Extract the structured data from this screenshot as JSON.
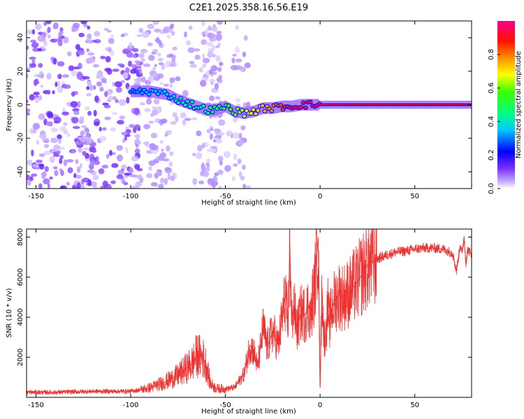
{
  "figure_title": "C2E1.2025.358.16.56.E19",
  "chart_data": [
    {
      "type": "heatmap",
      "xlabel": "Height of straight line (km)",
      "ylabel": "Frequency (Hz)",
      "xlim": [
        -155,
        80
      ],
      "ylim": [
        -50,
        50
      ],
      "xticks": [
        -150,
        -100,
        -50,
        0,
        50
      ],
      "yticks": [
        -40,
        -20,
        0,
        20,
        40
      ],
      "xtick_labels": [
        "-150",
        "-100",
        "-50",
        "0",
        "50"
      ],
      "ytick_labels": [
        "-40",
        "-20",
        "0",
        "20",
        "40"
      ],
      "grid": false,
      "colorbar": {
        "label": "Normalized spectral amplitude",
        "range": [
          0,
          1
        ],
        "ticks": [
          0.0,
          0.2,
          0.4,
          0.6,
          0.8
        ],
        "tick_labels": [
          "0.0",
          "0.2",
          "0.4",
          "0.6",
          "0.8"
        ],
        "colormap": [
          "#ffffff",
          "#a0a0ff",
          "#6000ff",
          "#0000ff",
          "#00ffff",
          "#00ff00",
          "#ffff00",
          "#ff8000",
          "#ff0000",
          "#ff0080"
        ]
      },
      "ridge": {
        "x": [
          -100,
          -90,
          -80,
          -75,
          -70,
          -65,
          -60,
          -55,
          -50,
          -45,
          -40,
          -35,
          -30,
          -25,
          -20,
          -15,
          -10,
          -5,
          0,
          5,
          10,
          20,
          40,
          60,
          80
        ],
        "freq": [
          8,
          8,
          6,
          3,
          1,
          -1,
          -3,
          -3,
          -1,
          -4,
          -5,
          -4,
          -2,
          -2,
          -1,
          -1,
          0,
          0,
          0,
          0,
          0,
          0,
          0,
          0,
          0
        ],
        "amplitude": [
          0.3,
          0.35,
          0.35,
          0.4,
          0.45,
          0.45,
          0.45,
          0.5,
          0.55,
          0.6,
          0.65,
          0.7,
          0.75,
          0.8,
          0.85,
          0.9,
          0.9,
          0.95,
          0.95,
          0.95,
          0.95,
          0.9,
          0.9,
          0.9,
          0.9
        ]
      }
    },
    {
      "type": "line",
      "xlabel": "Height of straight line (km)",
      "ylabel": "SNR (10 * v/v)",
      "xlim": [
        -155,
        80
      ],
      "ylim": [
        0,
        8400
      ],
      "xticks": [
        -150,
        -100,
        -50,
        0,
        50
      ],
      "yticks": [
        2000,
        4000,
        6000,
        8000
      ],
      "xtick_labels": [
        "-150",
        "-100",
        "-50",
        "0",
        "50"
      ],
      "ytick_labels": [
        "2000",
        "4000",
        "6000",
        "8000"
      ],
      "grid": false,
      "series": [
        {
          "name": "SNR",
          "color": "#ee3333",
          "x": [
            -155,
            -140,
            -120,
            -100,
            -95,
            -90,
            -85,
            -80,
            -75,
            -72,
            -68,
            -65,
            -62,
            -60,
            -58,
            -55,
            -50,
            -45,
            -40,
            -37,
            -35,
            -33,
            -30,
            -28,
            -25,
            -22,
            -20,
            -18,
            -17,
            -16,
            -15,
            -14,
            -12,
            -10,
            -8,
            -6,
            -5,
            -4,
            -3,
            -2,
            -1,
            0,
            1,
            2,
            3,
            4,
            5,
            6,
            8,
            10,
            12,
            15,
            20,
            25,
            30,
            35,
            40,
            45,
            50,
            55,
            60,
            65,
            70,
            72,
            74,
            75,
            76,
            77,
            78,
            80
          ],
          "values": [
            250,
            250,
            300,
            300,
            380,
            480,
            650,
            850,
            1100,
            1350,
            1650,
            2100,
            2000,
            1600,
            700,
            450,
            420,
            500,
            1200,
            2600,
            2300,
            1500,
            3500,
            2500,
            3300,
            2600,
            4000,
            5200,
            3000,
            7600,
            3600,
            4600,
            3400,
            4300,
            4100,
            4600,
            3800,
            4900,
            5300,
            6800,
            8000,
            500,
            5500,
            3000,
            3100,
            4600,
            3600,
            4400,
            4900,
            5100,
            5000,
            5200,
            5800,
            6600,
            6900,
            7100,
            7250,
            7300,
            7400,
            7450,
            7450,
            7400,
            7200,
            6300,
            7600,
            7200,
            8000,
            6700,
            7400,
            7100
          ]
        }
      ]
    }
  ]
}
